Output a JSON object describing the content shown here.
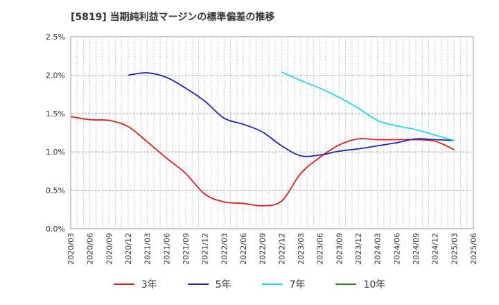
{
  "chart_data": {
    "type": "line",
    "title": "[5819]  当期純利益マージンの標準偏差の推移",
    "xlabel": "",
    "ylabel": "",
    "ylim": [
      0,
      2.5
    ],
    "y_unit": "%",
    "y_ticks": [
      "0.0%",
      "0.5%",
      "1.0%",
      "1.5%",
      "2.0%",
      "2.5%"
    ],
    "y_tick_values": [
      0,
      0.5,
      1.0,
      1.5,
      2.0,
      2.5
    ],
    "x": [
      "2020/03",
      "2020/06",
      "2020/09",
      "2020/12",
      "2021/03",
      "2021/06",
      "2021/09",
      "2021/12",
      "2022/03",
      "2022/06",
      "2022/09",
      "2022/12",
      "2023/03",
      "2023/06",
      "2023/09",
      "2023/12",
      "2024/03",
      "2024/06",
      "2024/09",
      "2024/12",
      "2025/03",
      "2025/06"
    ],
    "grid": true,
    "legend_position": "bottom",
    "series": [
      {
        "name": "3年",
        "color": "#e41a1c",
        "values": [
          1.46,
          1.42,
          1.41,
          1.33,
          1.13,
          0.92,
          0.72,
          0.45,
          0.35,
          0.33,
          0.3,
          0.36,
          0.72,
          0.93,
          1.09,
          1.17,
          1.16,
          1.16,
          1.16,
          1.14,
          1.03,
          null
        ]
      },
      {
        "name": "5年",
        "color": "#1f1fbf",
        "values": [
          null,
          null,
          null,
          2.0,
          2.03,
          1.97,
          1.83,
          1.66,
          1.44,
          1.36,
          1.26,
          1.08,
          0.95,
          0.96,
          1.01,
          1.04,
          1.08,
          1.12,
          1.17,
          1.16,
          1.15,
          null
        ]
      },
      {
        "name": "7年",
        "color": "#22d8ee",
        "values": [
          null,
          null,
          null,
          null,
          null,
          null,
          null,
          null,
          null,
          null,
          null,
          2.04,
          1.93,
          1.83,
          1.71,
          1.57,
          1.41,
          1.34,
          1.29,
          1.22,
          1.15,
          null
        ]
      },
      {
        "name": "10年",
        "color": "#1e8c1e",
        "values": [
          null,
          null,
          null,
          null,
          null,
          null,
          null,
          null,
          null,
          null,
          null,
          null,
          null,
          null,
          null,
          null,
          null,
          null,
          null,
          null,
          null,
          null
        ]
      }
    ]
  }
}
